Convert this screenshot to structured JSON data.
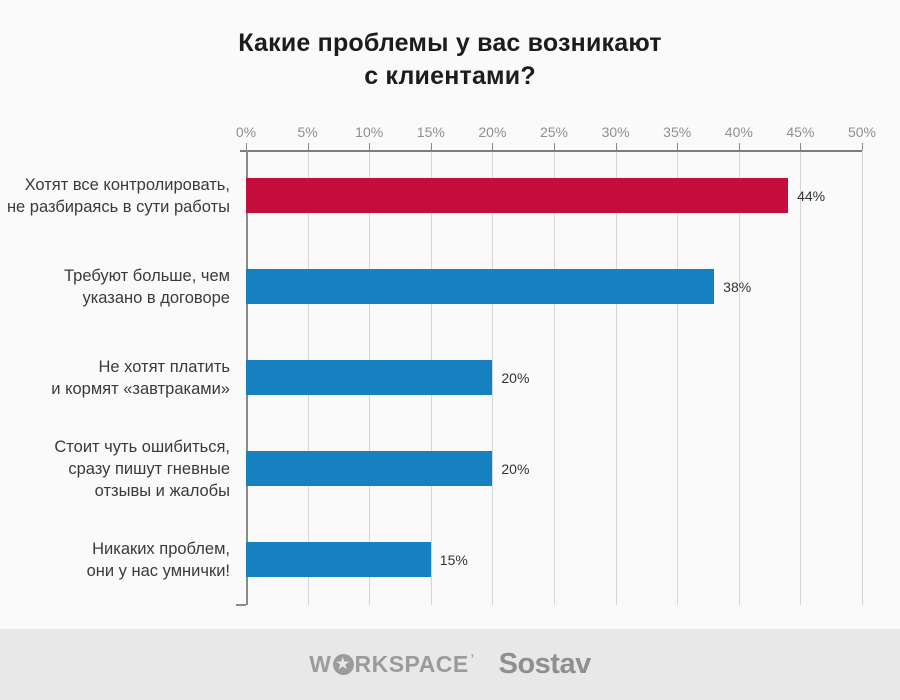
{
  "title": "Какие проблемы у вас возникают\nс клиентами?",
  "chart_data": {
    "type": "bar",
    "orientation": "horizontal",
    "title": "Какие проблемы у вас возникают с клиентами?",
    "categories": [
      "Хотят все контролировать, не разбираясь в сути работы",
      "Требуют больше, чем указано в договоре",
      "Не хотят платить и кормят «завтраками»",
      "Стоит чуть ошибиться, сразу пишут гневные отзывы и жалобы",
      "Никаких проблем, они у нас умнички!"
    ],
    "values": [
      44,
      38,
      20,
      20,
      15
    ],
    "xlim": [
      0,
      50
    ],
    "x_ticks": [
      "0%",
      "5%",
      "10%",
      "15%",
      "20%",
      "25%",
      "30%",
      "35%",
      "40%",
      "45%",
      "50%"
    ],
    "grid": true,
    "legend": "none",
    "rows": [
      {
        "label": "Хотят все контролировать,\nне разбираясь в сути работы",
        "value": 44,
        "value_label": "44%",
        "color": "#c40d3c"
      },
      {
        "label": "Требуют больше, чем\nуказано в договоре",
        "value": 38,
        "value_label": "38%",
        "color": "#1680c0"
      },
      {
        "label": "Не хотят платить\nи кормят «завтраками»",
        "value": 20,
        "value_label": "20%",
        "color": "#1680c0"
      },
      {
        "label": "Стоит чуть ошибиться,\nсразу пишут гневные\nотзывы и жалобы",
        "value": 20,
        "value_label": "20%",
        "color": "#1680c0"
      },
      {
        "label": "Никаких проблем,\nони у нас умнички!",
        "value": 15,
        "value_label": "15%",
        "color": "#1680c0"
      }
    ],
    "colors": {
      "highlight_bar": "#c40d3c",
      "default_bar": "#1680c0",
      "background": "#fafafa",
      "footer_background": "#e8e8e8",
      "gridline": "#d6d6d6",
      "axis": "#8a8a8a",
      "tick_label": "#8f8f8f"
    }
  },
  "footer": {
    "workspace_logo": {
      "part1": "W",
      "star": "★",
      "part2": "RKSPACE",
      "prime": "’"
    },
    "sostav_logo": "Sostav"
  }
}
